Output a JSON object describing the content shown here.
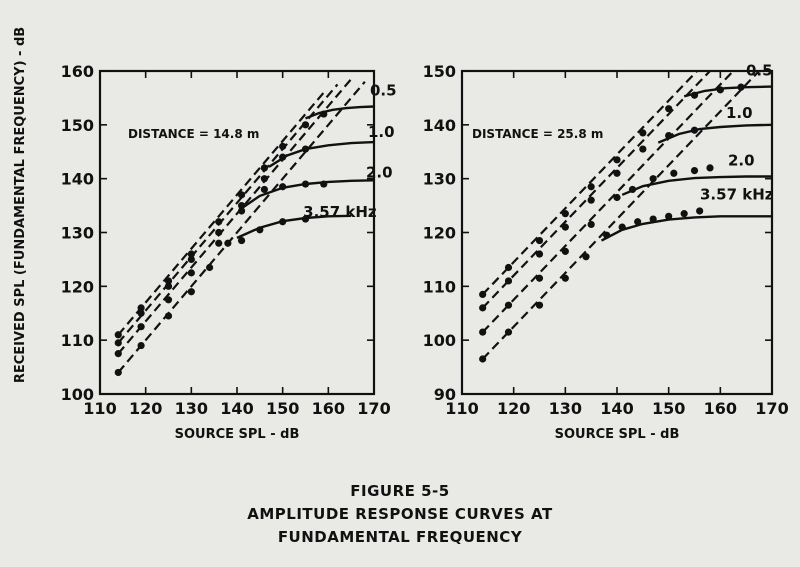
{
  "shared": {
    "ylabel": "RECEIVED SPL (FUNDAMENTAL FREQUENCY) - dB"
  },
  "caption": {
    "line1": "FIGURE 5-5",
    "line2": "AMPLITUDE RESPONSE CURVES AT",
    "line3": "FUNDAMENTAL FREQUENCY"
  },
  "chart_data": [
    {
      "type": "line",
      "title": "",
      "annotation": "DISTANCE = 14.8 m",
      "xlabel": "SOURCE SPL - dB",
      "ylabel": "RECEIVED SPL (FUNDAMENTAL FREQUENCY) - dB",
      "xlim": [
        110,
        170
      ],
      "ylim": [
        100,
        160
      ],
      "xticks": [
        110,
        120,
        130,
        140,
        150,
        160,
        170
      ],
      "yticks": [
        100,
        110,
        120,
        130,
        140,
        150,
        160
      ],
      "series": [
        {
          "name": "0.5",
          "label": "0.5",
          "linear_x": [
            114,
            159
          ],
          "linear_y": [
            111,
            156
          ],
          "solid_x": [
            155,
            158,
            161,
            164,
            167,
            170
          ],
          "solid_y": [
            151.2,
            152.2,
            152.8,
            153.1,
            153.3,
            153.4
          ],
          "points_x": [
            114,
            119,
            125,
            130,
            136,
            141,
            146,
            150,
            155,
            159
          ],
          "points_y": [
            111,
            116,
            121,
            126,
            132,
            137,
            142,
            146,
            150,
            152
          ]
        },
        {
          "name": "1.0",
          "label": "1.0",
          "linear_x": [
            114,
            162
          ],
          "linear_y": [
            109.5,
            157.5
          ],
          "solid_x": [
            147,
            151,
            155,
            160,
            165,
            170
          ],
          "solid_y": [
            142.2,
            144.3,
            145.5,
            146.2,
            146.6,
            146.8
          ],
          "points_x": [
            114,
            119,
            125,
            130,
            136,
            141,
            146,
            150,
            155
          ],
          "points_y": [
            109.5,
            115,
            120,
            125,
            130,
            135,
            140,
            144,
            145.5
          ]
        },
        {
          "name": "2.0",
          "label": "2.0",
          "linear_x": [
            114,
            165
          ],
          "linear_y": [
            107.5,
            158.5
          ],
          "solid_x": [
            141,
            145,
            150,
            155,
            160,
            165,
            170
          ],
          "solid_y": [
            134.5,
            136.8,
            138.3,
            139.0,
            139.4,
            139.6,
            139.7
          ],
          "points_x": [
            114,
            119,
            125,
            130,
            136,
            141,
            146,
            150,
            155,
            159
          ],
          "points_y": [
            107.5,
            112.5,
            117.5,
            122.5,
            128,
            134,
            138,
            138.5,
            139,
            139
          ]
        },
        {
          "name": "3.57 kHz",
          "label": "3.57 kHz",
          "linear_x": [
            114,
            168
          ],
          "linear_y": [
            104,
            158
          ],
          "solid_x": [
            140,
            145,
            150,
            155,
            160,
            165
          ],
          "solid_y": [
            129.0,
            130.9,
            132.1,
            132.7,
            133.0,
            133.1
          ],
          "points_x": [
            114,
            119,
            125,
            130,
            134,
            138,
            141,
            145,
            150,
            155
          ],
          "points_y": [
            104,
            109,
            114.5,
            119,
            123.5,
            128,
            128.5,
            130.5,
            132,
            132.5
          ]
        }
      ]
    },
    {
      "type": "line",
      "title": "",
      "annotation": "DISTANCE = 25.8 m",
      "xlabel": "SOURCE SPL - dB",
      "ylabel": "RECEIVED SPL (FUNDAMENTAL FREQUENCY) - dB",
      "xlim": [
        110,
        170
      ],
      "ylim": [
        90,
        150
      ],
      "xticks": [
        110,
        120,
        130,
        140,
        150,
        160,
        170
      ],
      "yticks": [
        90,
        100,
        110,
        120,
        130,
        140,
        150
      ],
      "series": [
        {
          "name": "0.5",
          "label": "0.5",
          "linear_x": [
            114,
            157
          ],
          "linear_y": [
            108.5,
            151.5
          ],
          "solid_x": [
            153,
            157,
            161,
            165,
            170
          ],
          "solid_y": [
            145.3,
            146.3,
            146.8,
            147.0,
            147.1
          ],
          "points_x": [
            114,
            119,
            125,
            130,
            135,
            140,
            145,
            150,
            155,
            160,
            164
          ],
          "points_y": [
            108.5,
            113.5,
            118.5,
            123.5,
            128.5,
            133.5,
            138.5,
            143,
            145.5,
            146.5,
            147
          ]
        },
        {
          "name": "1.0",
          "label": "1.0",
          "linear_x": [
            114,
            160
          ],
          "linear_y": [
            106,
            152
          ],
          "solid_x": [
            148,
            152,
            156,
            160,
            165,
            170
          ],
          "solid_y": [
            136.7,
            138.3,
            139.2,
            139.6,
            139.9,
            140.0
          ],
          "points_x": [
            114,
            119,
            125,
            130,
            135,
            140,
            145,
            150,
            155
          ],
          "points_y": [
            106,
            111,
            116,
            121,
            126,
            131,
            135.5,
            138,
            139
          ]
        },
        {
          "name": "2.0",
          "label": "2.0",
          "linear_x": [
            114,
            164
          ],
          "linear_y": [
            101.5,
            151.5
          ],
          "solid_x": [
            141,
            145,
            150,
            155,
            160,
            165,
            170
          ],
          "solid_y": [
            127.0,
            128.6,
            129.6,
            130.1,
            130.3,
            130.4,
            130.4
          ],
          "points_x": [
            114,
            119,
            125,
            130,
            135,
            140,
            143,
            147,
            151,
            155,
            158
          ],
          "points_y": [
            101.5,
            106.5,
            111.5,
            116.5,
            121.5,
            126.5,
            128,
            130,
            131,
            131.5,
            132
          ]
        },
        {
          "name": "3.57 kHz",
          "label": "3.57 kHz",
          "linear_x": [
            114,
            168
          ],
          "linear_y": [
            96.5,
            150.5
          ],
          "solid_x": [
            137,
            141,
            145,
            150,
            155,
            160,
            165,
            170
          ],
          "solid_y": [
            118.5,
            120.5,
            121.6,
            122.4,
            122.8,
            123.0,
            123.0,
            123.0
          ],
          "points_x": [
            114,
            119,
            125,
            130,
            134,
            138,
            141,
            144,
            147,
            150,
            153,
            156
          ],
          "points_y": [
            96.5,
            101.5,
            106.5,
            111.5,
            115.5,
            119.5,
            121,
            122,
            122.5,
            123,
            123.5,
            124
          ]
        }
      ]
    }
  ]
}
